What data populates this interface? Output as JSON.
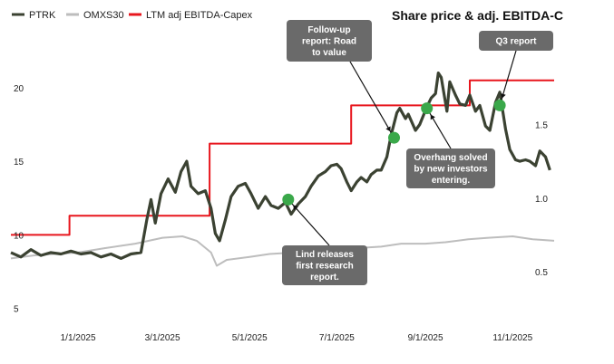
{
  "chart_data": {
    "type": "line",
    "title": "Share price & adj. EBITDA-C",
    "colors": {
      "ptrk": "#3b4232",
      "omxs30": "#bdbdbd",
      "ebitda": "#e8161d",
      "marker": "#3aa84a",
      "callout": "#6a6a6a"
    },
    "x_ticks": [
      "1/1/2025",
      "3/1/2025",
      "5/1/2025",
      "7/1/2025",
      "9/1/2025",
      "11/1/2025"
    ],
    "x_tick_dates": [
      "2025-01-01",
      "2025-03-01",
      "2025-05-01",
      "2025-07-01",
      "2025-09-01",
      "2025-11-01"
    ],
    "x_range": [
      "2024-11-15",
      "2025-11-30"
    ],
    "y_left": {
      "ticks": [
        "5",
        "10",
        "15",
        "20"
      ],
      "values": [
        5,
        10,
        15,
        20
      ],
      "range": [
        3.5,
        23.5
      ]
    },
    "y_right": {
      "ticks": [
        "0.5",
        "1.0",
        "1.5"
      ],
      "values": [
        0.5,
        1.0,
        1.5
      ],
      "range": [
        0.1,
        2.1
      ]
    },
    "series": [
      {
        "name": "PTRK",
        "axis": "left",
        "points": [
          [
            "2024-11-15",
            8.8
          ],
          [
            "2024-11-22",
            8.5
          ],
          [
            "2024-11-29",
            9.0
          ],
          [
            "2024-12-06",
            8.6
          ],
          [
            "2024-12-13",
            8.8
          ],
          [
            "2024-12-20",
            8.7
          ],
          [
            "2024-12-27",
            8.9
          ],
          [
            "2025-01-03",
            8.7
          ],
          [
            "2025-01-10",
            8.8
          ],
          [
            "2025-01-17",
            8.5
          ],
          [
            "2025-01-24",
            8.7
          ],
          [
            "2025-01-31",
            8.4
          ],
          [
            "2025-02-07",
            8.7
          ],
          [
            "2025-02-14",
            8.8
          ],
          [
            "2025-02-18",
            11.0
          ],
          [
            "2025-02-21",
            12.4
          ],
          [
            "2025-02-24",
            10.8
          ],
          [
            "2025-02-28",
            12.8
          ],
          [
            "2025-03-05",
            13.8
          ],
          [
            "2025-03-10",
            12.9
          ],
          [
            "2025-03-14",
            14.3
          ],
          [
            "2025-03-18",
            15.0
          ],
          [
            "2025-03-21",
            13.3
          ],
          [
            "2025-03-26",
            12.8
          ],
          [
            "2025-03-31",
            13.0
          ],
          [
            "2025-04-04",
            11.8
          ],
          [
            "2025-04-07",
            10.1
          ],
          [
            "2025-04-10",
            9.6
          ],
          [
            "2025-04-14",
            11.0
          ],
          [
            "2025-04-18",
            12.6
          ],
          [
            "2025-04-23",
            13.3
          ],
          [
            "2025-04-28",
            13.5
          ],
          [
            "2025-05-02",
            12.8
          ],
          [
            "2025-05-07",
            11.8
          ],
          [
            "2025-05-12",
            12.6
          ],
          [
            "2025-05-16",
            12.0
          ],
          [
            "2025-05-21",
            11.8
          ],
          [
            "2025-05-26",
            12.2
          ],
          [
            "2025-05-30",
            11.4
          ],
          [
            "2025-06-04",
            12.1
          ],
          [
            "2025-06-09",
            12.6
          ],
          [
            "2025-06-13",
            13.3
          ],
          [
            "2025-06-18",
            14.0
          ],
          [
            "2025-06-23",
            14.3
          ],
          [
            "2025-06-27",
            14.7
          ],
          [
            "2025-07-01",
            14.8
          ],
          [
            "2025-07-04",
            14.5
          ],
          [
            "2025-07-08",
            13.6
          ],
          [
            "2025-07-11",
            13.0
          ],
          [
            "2025-07-15",
            13.6
          ],
          [
            "2025-07-18",
            13.9
          ],
          [
            "2025-07-22",
            13.6
          ],
          [
            "2025-07-25",
            14.1
          ],
          [
            "2025-07-29",
            14.4
          ],
          [
            "2025-08-01",
            14.4
          ],
          [
            "2025-08-05",
            15.3
          ],
          [
            "2025-08-08",
            16.8
          ],
          [
            "2025-08-12",
            18.3
          ],
          [
            "2025-08-14",
            18.6
          ],
          [
            "2025-08-18",
            17.9
          ],
          [
            "2025-08-20",
            18.2
          ],
          [
            "2025-08-25",
            17.1
          ],
          [
            "2025-08-28",
            17.5
          ],
          [
            "2025-09-02",
            18.7
          ],
          [
            "2025-09-05",
            19.3
          ],
          [
            "2025-09-08",
            19.6
          ],
          [
            "2025-09-10",
            21.0
          ],
          [
            "2025-09-12",
            20.7
          ],
          [
            "2025-09-16",
            18.4
          ],
          [
            "2025-09-18",
            20.4
          ],
          [
            "2025-09-22",
            19.5
          ],
          [
            "2025-09-25",
            18.9
          ],
          [
            "2025-09-29",
            18.8
          ],
          [
            "2025-10-02",
            19.5
          ],
          [
            "2025-10-06",
            18.4
          ],
          [
            "2025-10-09",
            18.8
          ],
          [
            "2025-10-13",
            17.4
          ],
          [
            "2025-10-16",
            17.1
          ],
          [
            "2025-10-20",
            19.0
          ],
          [
            "2025-10-23",
            19.7
          ],
          [
            "2025-10-27",
            17.2
          ],
          [
            "2025-10-30",
            15.8
          ],
          [
            "2025-11-03",
            15.1
          ],
          [
            "2025-11-06",
            15.0
          ],
          [
            "2025-11-10",
            15.1
          ],
          [
            "2025-11-13",
            15.0
          ],
          [
            "2025-11-17",
            14.7
          ],
          [
            "2025-11-20",
            15.7
          ],
          [
            "2025-11-24",
            15.3
          ],
          [
            "2025-11-27",
            14.4
          ]
        ]
      },
      {
        "name": "OMXS30",
        "axis": "left",
        "points": [
          [
            "2024-11-15",
            8.4
          ],
          [
            "2024-12-01",
            8.6
          ],
          [
            "2024-12-15",
            8.7
          ],
          [
            "2025-01-01",
            8.8
          ],
          [
            "2025-01-20",
            9.1
          ],
          [
            "2025-02-10",
            9.4
          ],
          [
            "2025-03-01",
            9.8
          ],
          [
            "2025-03-15",
            9.9
          ],
          [
            "2025-03-25",
            9.6
          ],
          [
            "2025-04-04",
            8.8
          ],
          [
            "2025-04-08",
            7.9
          ],
          [
            "2025-04-15",
            8.3
          ],
          [
            "2025-05-01",
            8.5
          ],
          [
            "2025-05-15",
            8.7
          ],
          [
            "2025-06-01",
            8.8
          ],
          [
            "2025-06-15",
            8.9
          ],
          [
            "2025-07-01",
            8.9
          ],
          [
            "2025-07-15",
            9.1
          ],
          [
            "2025-08-01",
            9.2
          ],
          [
            "2025-08-15",
            9.4
          ],
          [
            "2025-09-01",
            9.4
          ],
          [
            "2025-09-15",
            9.5
          ],
          [
            "2025-10-01",
            9.7
          ],
          [
            "2025-10-15",
            9.8
          ],
          [
            "2025-11-01",
            9.9
          ],
          [
            "2025-11-15",
            9.7
          ],
          [
            "2025-11-30",
            9.6
          ]
        ]
      },
      {
        "name": "LTM adj EBITDA-Capex",
        "axis": "right",
        "step": true,
        "points": [
          [
            "2024-11-15",
            0.75
          ],
          [
            "2024-12-26",
            0.75
          ],
          [
            "2024-12-26",
            0.88
          ],
          [
            "2025-04-03",
            0.88
          ],
          [
            "2025-04-03",
            1.37
          ],
          [
            "2025-07-11",
            1.37
          ],
          [
            "2025-07-11",
            1.63
          ],
          [
            "2025-10-02",
            1.63
          ],
          [
            "2025-10-02",
            1.8
          ],
          [
            "2025-11-30",
            1.8
          ]
        ]
      }
    ],
    "annotations": [
      {
        "date": "2025-05-28",
        "y": 12.4,
        "text": "Lind releases first research report."
      },
      {
        "date": "2025-08-10",
        "y": 16.6,
        "text": "Follow-up report: Road to value"
      },
      {
        "date": "2025-09-02",
        "y": 18.6,
        "text": "Overhang solved by new investors entering."
      },
      {
        "date": "2025-10-23",
        "y": 18.8,
        "text": "Q3 report"
      }
    ]
  }
}
